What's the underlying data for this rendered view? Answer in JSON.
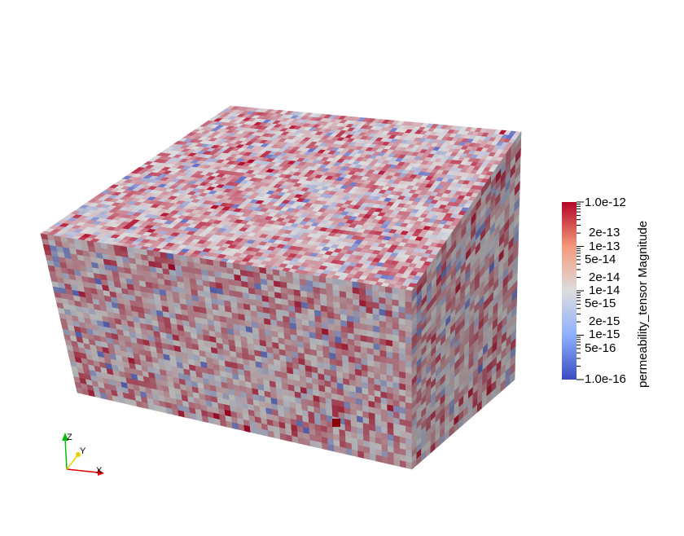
{
  "scalar_bar": {
    "title": "permeability_tensor Magnitude",
    "labels": [
      "1.0e-12",
      "2e-13",
      "1e-13",
      "5e-14",
      "2e-14",
      "1e-14",
      "5e-15",
      "2e-15",
      "1e-15",
      "5e-16",
      "1.0e-16"
    ],
    "colormap": "coolwarm",
    "color_low": "#3b4cc0",
    "color_mid": "#dddddd",
    "color_high": "#b40426"
  },
  "orientation_axes": {
    "x_label": "X",
    "y_label": "Y",
    "z_label": "Z",
    "x_color": "#e00000",
    "y_color": "#e6d000",
    "z_color": "#00c000"
  },
  "scene": {
    "object": "voxel-block",
    "highlight_cell_color": "#8b0000"
  }
}
